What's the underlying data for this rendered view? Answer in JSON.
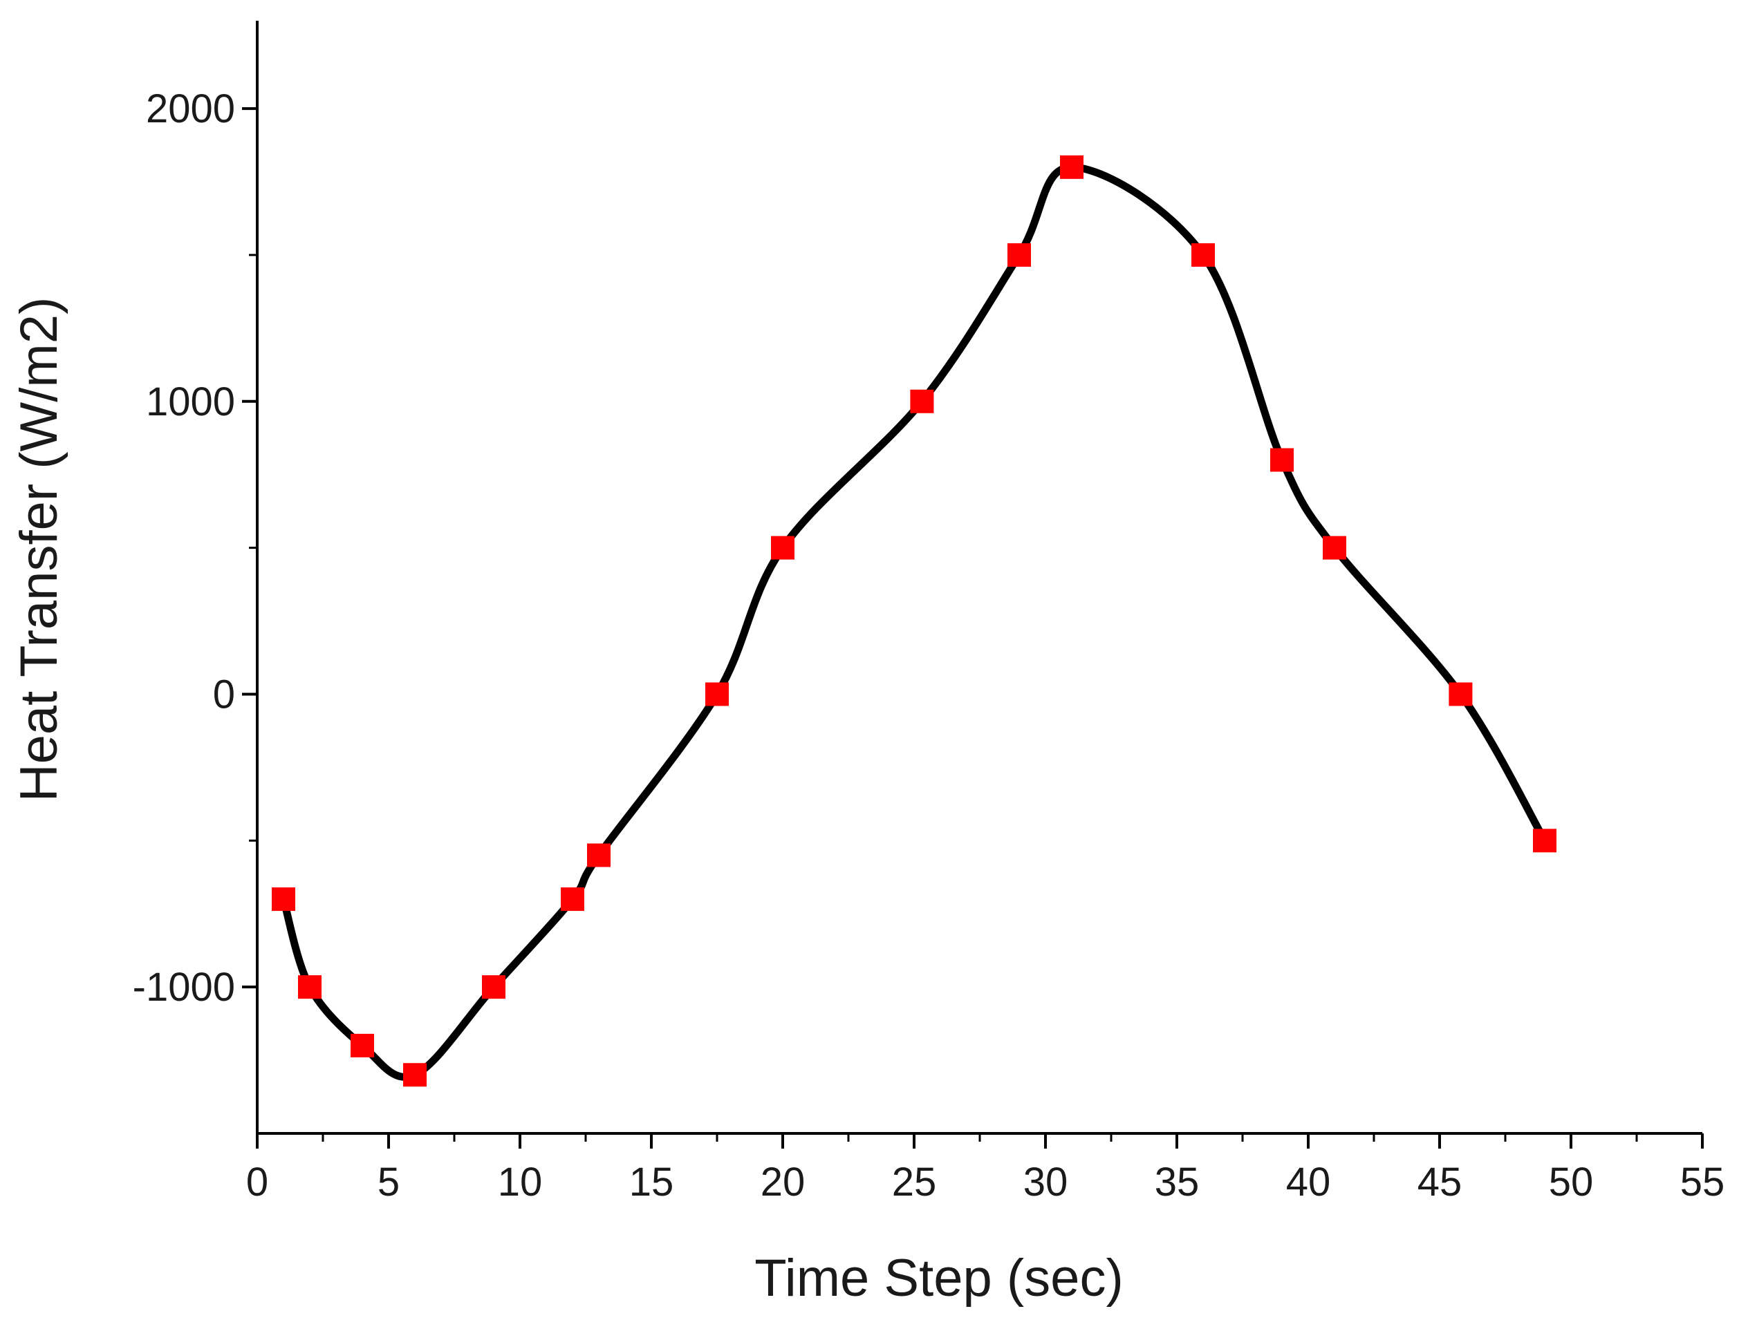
{
  "chart_data": {
    "type": "line",
    "title": "",
    "xlabel": "Time Step (sec)",
    "ylabel": "Heat Transfer (W/m2)",
    "xlim": [
      0,
      55
    ],
    "ylim": [
      -1500,
      2300
    ],
    "xticks": [
      0,
      5,
      10,
      15,
      20,
      25,
      30,
      35,
      40,
      45,
      50,
      55
    ],
    "xtick_labels": [
      "0",
      "5",
      "10",
      "15",
      "20",
      "25",
      "30",
      "35",
      "40",
      "45",
      "50",
      "55"
    ],
    "yticks": [
      -1000,
      0,
      1000,
      2000
    ],
    "ytick_labels": [
      "-1000",
      "0",
      "1000",
      "2000"
    ],
    "grid": false,
    "series": [
      {
        "name": "Heat Transfer",
        "line_color": "#000000",
        "marker_color": "#ff0000",
        "marker": "square",
        "smooth": true,
        "x": [
          1,
          2,
          4,
          6,
          9,
          12,
          13,
          17.5,
          20,
          25.3,
          29,
          31,
          36,
          39,
          41,
          45.8,
          49
        ],
        "y": [
          -700,
          -1000,
          -1200,
          -1300,
          -1000,
          -700,
          -550,
          0,
          500,
          1000,
          1500,
          1800,
          1500,
          800,
          500,
          0,
          -500
        ]
      }
    ]
  }
}
